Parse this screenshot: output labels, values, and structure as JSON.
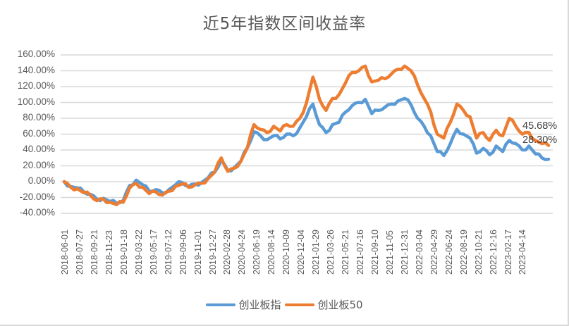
{
  "chart_data": {
    "type": "line",
    "title": "近5年指数区间收益率",
    "xlabel": "",
    "ylabel": "",
    "ylim": [
      -0.4,
      1.6
    ],
    "y_ticks": [
      "160.00%",
      "140.00%",
      "120.00%",
      "100.00%",
      "80.00%",
      "60.00%",
      "40.00%",
      "20.00%",
      "0.00%",
      "-20.00%",
      "-40.00%"
    ],
    "x_ticks": [
      "2018-06-01",
      "2018-07-27",
      "2018-09-21",
      "2018-11-23",
      "2019-01-18",
      "2019-03-22",
      "2019-05-17",
      "2019-07-12",
      "2019-09-06",
      "2019-11-01",
      "2019-12-27",
      "2020-02-28",
      "2020-04-24",
      "2020-06-19",
      "2020-08-14",
      "2020-10-09",
      "2020-12-04",
      "2021-01-29",
      "2021-03-26",
      "2021-05-21",
      "2021-07-16",
      "2021-09-10",
      "2021-11-05",
      "2021-12-31",
      "2022-03-04",
      "2022-04-29",
      "2022-06-24",
      "2022-08-19",
      "2022-10-21",
      "2022-12-16",
      "2023-02-17",
      "2023-04-14"
    ],
    "grid": true,
    "legend_position": "bottom",
    "series": [
      {
        "name": "创业板指",
        "color": "#5B9BD5",
        "values": [
          0.0,
          -0.06,
          -0.08,
          -0.13,
          -0.16,
          -0.22,
          -0.21,
          -0.25,
          -0.27,
          -0.24,
          -0.05,
          0.02,
          -0.04,
          -0.12,
          -0.1,
          -0.14,
          -0.1,
          -0.04,
          -0.01,
          -0.06,
          -0.03,
          -0.01,
          0.05,
          0.12,
          0.27,
          0.14,
          0.18,
          0.26,
          0.43,
          0.63,
          0.58,
          0.53,
          0.58,
          0.54,
          0.6,
          0.58,
          0.68,
          0.82,
          0.98,
          0.72,
          0.62,
          0.72,
          0.75,
          0.88,
          0.96,
          1.0,
          1.04,
          0.86,
          0.9,
          0.94,
          0.98,
          1.02,
          1.05,
          0.97,
          0.8,
          0.7,
          0.58,
          0.38,
          0.33,
          0.48,
          0.66,
          0.6,
          0.55,
          0.36,
          0.42,
          0.34,
          0.45,
          0.38,
          0.52,
          0.48,
          0.4,
          0.45,
          0.35,
          0.3,
          0.283
        ],
        "last_label": "28.30%"
      },
      {
        "name": "创业板50",
        "color": "#ED7D31",
        "values": [
          0.0,
          -0.07,
          -0.09,
          -0.14,
          -0.17,
          -0.24,
          -0.22,
          -0.26,
          -0.29,
          -0.26,
          -0.08,
          -0.02,
          -0.07,
          -0.15,
          -0.13,
          -0.17,
          -0.12,
          -0.06,
          -0.03,
          -0.07,
          -0.04,
          -0.02,
          0.04,
          0.12,
          0.3,
          0.13,
          0.17,
          0.26,
          0.43,
          0.72,
          0.66,
          0.62,
          0.7,
          0.64,
          0.72,
          0.7,
          0.8,
          0.99,
          1.32,
          1.04,
          0.9,
          1.05,
          1.1,
          1.25,
          1.38,
          1.4,
          1.46,
          1.26,
          1.28,
          1.3,
          1.36,
          1.42,
          1.46,
          1.4,
          1.22,
          1.05,
          0.88,
          0.6,
          0.55,
          0.75,
          0.98,
          0.9,
          0.82,
          0.55,
          0.62,
          0.52,
          0.65,
          0.58,
          0.8,
          0.7,
          0.6,
          0.62,
          0.52,
          0.48,
          0.4568
        ],
        "last_label": "45.68%"
      }
    ],
    "annotations": [
      "45.68%",
      "28.30%"
    ]
  },
  "legend": {
    "items": [
      {
        "label": "创业板指",
        "color": "#5B9BD5"
      },
      {
        "label": "创业板50",
        "color": "#ED7D31"
      }
    ]
  }
}
